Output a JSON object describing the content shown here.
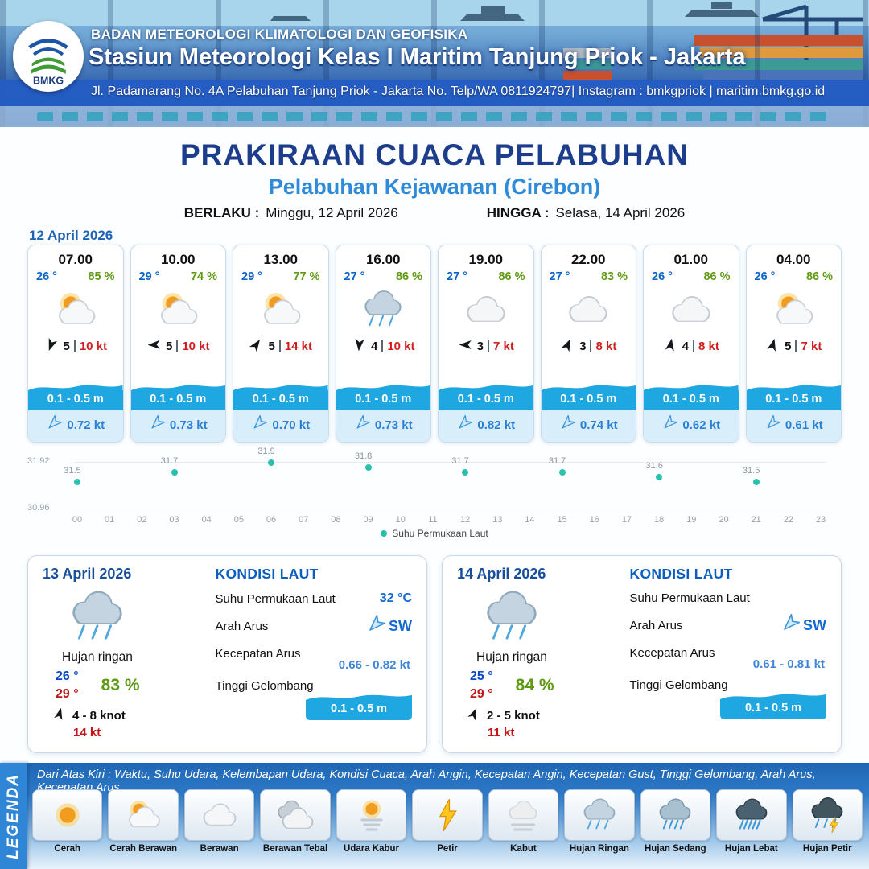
{
  "header": {
    "agency": "BADAN METEOROLOGI KLIMATOLOGI DAN GEOFISIKA",
    "station": "Stasiun Meteorologi Kelas I Maritim Tanjung Priok - Jakarta",
    "address": "Jl. Padamarang No. 4A Pelabuhan Tanjung Priok - Jakarta No. Telp/WA 0811924797| Instagram : bmkgpriok | maritim.bmkg.go.id",
    "logo_label": "BMKG"
  },
  "title": {
    "main": "PRAKIRAAN CUACA PELABUHAN",
    "port": "Pelabuhan Kejawanan (Cirebon)",
    "valid_from_label": "BERLAKU :",
    "valid_from": "Minggu, 12 April 2026",
    "valid_to_label": "HINGGA :",
    "valid_to": "Selasa, 14 April 2026"
  },
  "hourly": {
    "date": "12 April 2026",
    "cards": [
      {
        "time": "07.00",
        "temp": "26 °",
        "humidity": "85 %",
        "icon": "cerah-berawan",
        "wind_dir_deg": 200,
        "wind_val": "5",
        "wind_speed": "10 kt",
        "wave": "0.1 - 0.5 m",
        "current_dir_deg": 225,
        "current": "0.72 kt"
      },
      {
        "time": "10.00",
        "temp": "29 °",
        "humidity": "74 %",
        "icon": "cerah-berawan",
        "wind_dir_deg": 268,
        "wind_val": "5",
        "wind_speed": "10 kt",
        "wave": "0.1 - 0.5 m",
        "current_dir_deg": 225,
        "current": "0.73 kt"
      },
      {
        "time": "13.00",
        "temp": "29 °",
        "humidity": "77 %",
        "icon": "cerah-berawan",
        "wind_dir_deg": 35,
        "wind_val": "5",
        "wind_speed": "14 kt",
        "wave": "0.1 - 0.5 m",
        "current_dir_deg": 225,
        "current": "0.70 kt"
      },
      {
        "time": "16.00",
        "temp": "27 °",
        "humidity": "86 %",
        "icon": "hujan-ringan",
        "wind_dir_deg": 185,
        "wind_val": "4",
        "wind_speed": "10 kt",
        "wave": "0.1 - 0.5 m",
        "current_dir_deg": 225,
        "current": "0.73 kt"
      },
      {
        "time": "19.00",
        "temp": "27 °",
        "humidity": "86 %",
        "icon": "berawan",
        "wind_dir_deg": 270,
        "wind_val": "3",
        "wind_speed": "7 kt",
        "wave": "0.1 - 0.5 m",
        "current_dir_deg": 225,
        "current": "0.82 kt"
      },
      {
        "time": "22.00",
        "temp": "27 °",
        "humidity": "83 %",
        "icon": "berawan",
        "wind_dir_deg": 25,
        "wind_val": "3",
        "wind_speed": "8 kt",
        "wave": "0.1 - 0.5 m",
        "current_dir_deg": 225,
        "current": "0.74 kt"
      },
      {
        "time": "01.00",
        "temp": "26 °",
        "humidity": "86 %",
        "icon": "berawan",
        "wind_dir_deg": 10,
        "wind_val": "4",
        "wind_speed": "8 kt",
        "wave": "0.1 - 0.5 m",
        "current_dir_deg": 225,
        "current": "0.62 kt"
      },
      {
        "time": "04.00",
        "temp": "26 °",
        "humidity": "86 %",
        "icon": "cerah-berawan",
        "wind_dir_deg": 15,
        "wind_val": "5",
        "wind_speed": "7 kt",
        "wave": "0.1 - 0.5 m",
        "current_dir_deg": 225,
        "current": "0.61 kt"
      }
    ]
  },
  "chart_data": {
    "type": "scatter",
    "title": "Suhu Permukaan Laut",
    "legend": "Suhu Permukaan Laut",
    "dot_color": "#2bbfae",
    "ylim": [
      30.96,
      31.92
    ],
    "y_ticks": [
      "31.92",
      "30.96"
    ],
    "x_ticks": [
      "00",
      "01",
      "02",
      "03",
      "04",
      "05",
      "06",
      "07",
      "08",
      "09",
      "10",
      "11",
      "12",
      "13",
      "14",
      "15",
      "16",
      "17",
      "18",
      "19",
      "20",
      "21",
      "22",
      "23"
    ],
    "points": [
      {
        "x": 0,
        "y": 31.5
      },
      {
        "x": 3,
        "y": 31.7
      },
      {
        "x": 6,
        "y": 31.9
      },
      {
        "x": 9,
        "y": 31.8
      },
      {
        "x": 12,
        "y": 31.7
      },
      {
        "x": 15,
        "y": 31.7
      },
      {
        "x": 18,
        "y": 31.6
      },
      {
        "x": 21,
        "y": 31.5
      }
    ]
  },
  "daily": [
    {
      "date": "13 April 2026",
      "icon": "hujan-ringan",
      "condition": "Hujan ringan",
      "temp_min": "26 °",
      "temp_max": "29 °",
      "humidity": "83 %",
      "wind_dir_deg": 15,
      "wind_range": "4 - 8 knot",
      "gust": "14 kt",
      "sea": {
        "heading": "KONDISI LAUT",
        "sst_label": "Suhu Permukaan Laut",
        "sst": "32 °C",
        "current_dir_label": "Arah Arus",
        "current_dir": "SW",
        "current_speed_label": "Kecepatan Arus",
        "current_speed": "0.66 - 0.82 kt",
        "wave_label": "Tinggi Gelombang",
        "wave": "0.1 - 0.5 m"
      }
    },
    {
      "date": "14 April 2026",
      "icon": "hujan-ringan",
      "condition": "Hujan ringan",
      "temp_min": "25 °",
      "temp_max": "29 °",
      "humidity": "84 %",
      "wind_dir_deg": 25,
      "wind_range": "2 - 5 knot",
      "gust": "11 kt",
      "sea": {
        "heading": "KONDISI LAUT",
        "sst_label": "Suhu Permukaan Laut",
        "sst": "",
        "current_dir_label": "Arah Arus",
        "current_dir": "SW",
        "current_speed_label": "Kecepatan Arus",
        "current_speed": "0.61 - 0.81 kt",
        "wave_label": "Tinggi Gelombang",
        "wave": "0.1 - 0.5 m"
      }
    }
  ],
  "legend": {
    "title": "LEGENDA",
    "description": "Dari Atas Kiri : Waktu, Suhu Udara, Kelembapan Udara, Kondisi Cuaca, Arah Angin, Kecepatan Angin, Kecepatan Gust, Tinggi Gelombang, Arah Arus, Kecepatan Arus",
    "items": [
      {
        "label": "Cerah",
        "icon": "cerah"
      },
      {
        "label": "Cerah Berawan",
        "icon": "cerah-berawan"
      },
      {
        "label": "Berawan",
        "icon": "berawan"
      },
      {
        "label": "Berawan Tebal",
        "icon": "berawan-tebal"
      },
      {
        "label": "Udara Kabur",
        "icon": "udara-kabur"
      },
      {
        "label": "Petir",
        "icon": "petir"
      },
      {
        "label": "Kabut",
        "icon": "kabut"
      },
      {
        "label": "Hujan Ringan",
        "icon": "hujan-ringan"
      },
      {
        "label": "Hujan Sedang",
        "icon": "hujan-sedang"
      },
      {
        "label": "Hujan Lebat",
        "icon": "hujan-lebat"
      },
      {
        "label": "Hujan Petir",
        "icon": "hujan-petir"
      }
    ]
  }
}
